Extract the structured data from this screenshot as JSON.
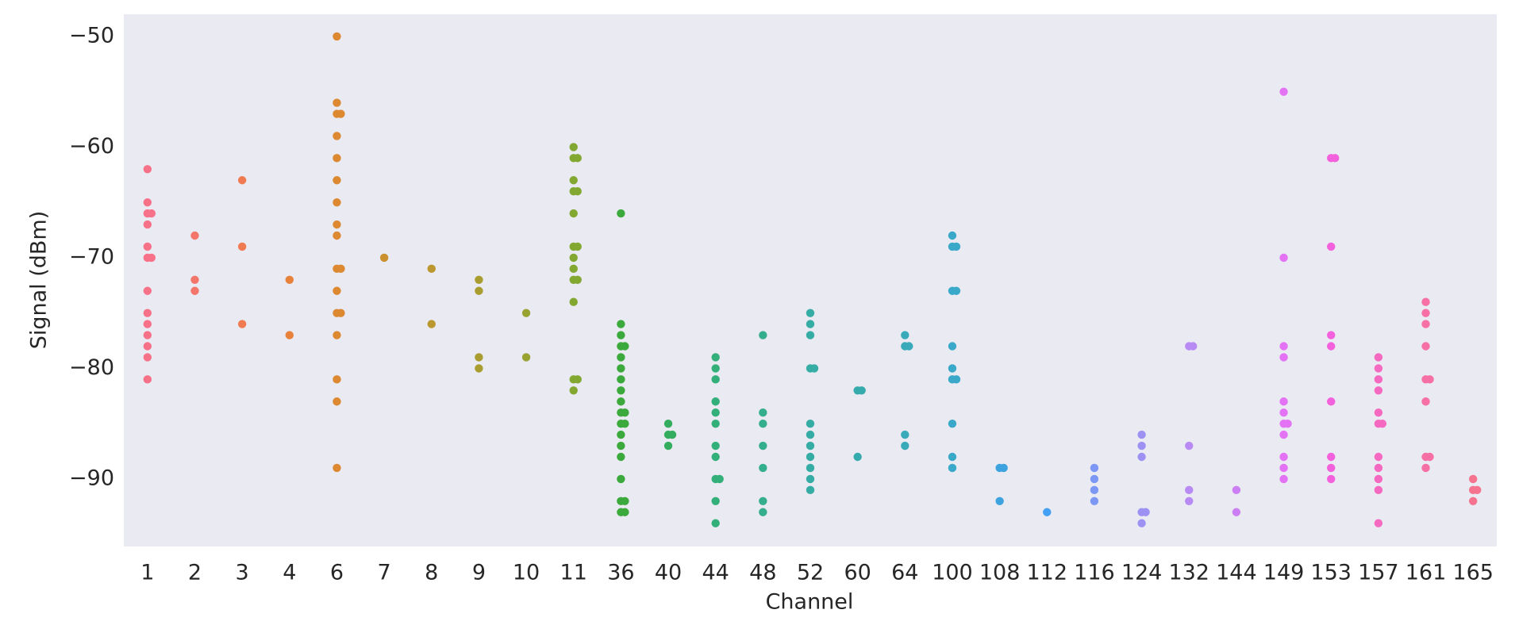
{
  "chart_data": {
    "type": "strip",
    "x_label": "Channel",
    "y_label": "Signal (dBm)",
    "categories": [
      "1",
      "2",
      "3",
      "4",
      "6",
      "7",
      "8",
      "9",
      "10",
      "11",
      "36",
      "40",
      "44",
      "48",
      "52",
      "60",
      "64",
      "100",
      "108",
      "112",
      "116",
      "124",
      "132",
      "144",
      "149",
      "153",
      "157",
      "161",
      "165"
    ],
    "colors": [
      "#f77189",
      "#f4766a",
      "#f07b52",
      "#e8823b",
      "#dc8932",
      "#cc912f",
      "#bb982f",
      "#aa9d30",
      "#98a231",
      "#82a831",
      "#3ba93b",
      "#34ad5e",
      "#33b07a",
      "#34ae8f",
      "#35aca4",
      "#36abad",
      "#38aab9",
      "#3aa8c9",
      "#3ca3de",
      "#44a0f4",
      "#7c97f4",
      "#9d91f4",
      "#b88af4",
      "#cc7ef4",
      "#e372f4",
      "#f461dd",
      "#f569c0",
      "#f66fa5",
      "#f5738f"
    ],
    "values": [
      [
        -62,
        -65,
        -66,
        -66,
        -67,
        -69,
        -70,
        -70,
        -73,
        -75,
        -76,
        -77,
        -78,
        -79,
        -81
      ],
      [
        -68,
        -72,
        -73
      ],
      [
        -63,
        -69,
        -76
      ],
      [
        -72,
        -77
      ],
      [
        -50,
        -56,
        -57,
        -57,
        -59,
        -61,
        -63,
        -65,
        -67,
        -68,
        -71,
        -71,
        -73,
        -75,
        -75,
        -77,
        -81,
        -83,
        -89
      ],
      [
        -70
      ],
      [
        -71,
        -76
      ],
      [
        -72,
        -73,
        -79,
        -80
      ],
      [
        -75,
        -79
      ],
      [
        -60,
        -61,
        -61,
        -63,
        -64,
        -64,
        -66,
        -69,
        -69,
        -70,
        -71,
        -72,
        -72,
        -74,
        -81,
        -81,
        -82
      ],
      [
        -66,
        -76,
        -77,
        -78,
        -78,
        -79,
        -80,
        -81,
        -82,
        -83,
        -84,
        -84,
        -85,
        -85,
        -86,
        -87,
        -88,
        -90,
        -92,
        -92,
        -93,
        -93
      ],
      [
        -85,
        -86,
        -86,
        -87
      ],
      [
        -79,
        -80,
        -81,
        -83,
        -84,
        -85,
        -87,
        -88,
        -90,
        -90,
        -92,
        -94
      ],
      [
        -77,
        -84,
        -85,
        -87,
        -89,
        -92,
        -93
      ],
      [
        -75,
        -76,
        -77,
        -80,
        -80,
        -85,
        -86,
        -87,
        -88,
        -89,
        -90,
        -91
      ],
      [
        -82,
        -82,
        -88
      ],
      [
        -77,
        -78,
        -78,
        -86,
        -87
      ],
      [
        -68,
        -69,
        -69,
        -73,
        -73,
        -78,
        -80,
        -81,
        -81,
        -85,
        -88,
        -89
      ],
      [
        -89,
        -89,
        -92
      ],
      [
        -93
      ],
      [
        -89,
        -90,
        -91,
        -92
      ],
      [
        -86,
        -87,
        -88,
        -93,
        -93,
        -94
      ],
      [
        -78,
        -78,
        -87,
        -91,
        -92
      ],
      [
        -91,
        -93
      ],
      [
        -55,
        -70,
        -78,
        -79,
        -83,
        -84,
        -85,
        -85,
        -86,
        -88,
        -89,
        -90
      ],
      [
        -61,
        -61,
        -69,
        -77,
        -78,
        -83,
        -88,
        -89,
        -90
      ],
      [
        -79,
        -80,
        -81,
        -82,
        -84,
        -85,
        -85,
        -88,
        -89,
        -90,
        -91,
        -94
      ],
      [
        -74,
        -75,
        -76,
        -78,
        -81,
        -81,
        -83,
        -88,
        -88,
        -89
      ],
      [
        -90,
        -91,
        -91,
        -92
      ]
    ],
    "ylim": [
      -96.1,
      -48
    ],
    "yticks": [
      {
        "value": -50,
        "label": "−50"
      },
      {
        "value": -60,
        "label": "−60"
      },
      {
        "value": -70,
        "label": "−70"
      },
      {
        "value": -80,
        "label": "−80"
      },
      {
        "value": -90,
        "label": "−90"
      }
    ],
    "background": "#eaeaf2"
  }
}
